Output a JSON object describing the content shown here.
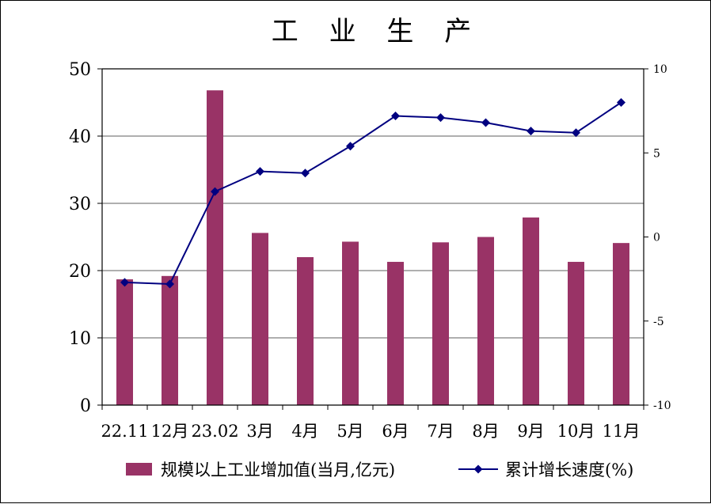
{
  "chart_data": {
    "type": "bar+line",
    "title": "工 业 生 产",
    "categories": [
      "22.11",
      "12月",
      "23.02",
      "3月",
      "4月",
      "5月",
      "6月",
      "7月",
      "8月",
      "9月",
      "10月",
      "11月"
    ],
    "series": [
      {
        "name": "规模以上工业增加值(当月,亿元)",
        "type": "bar",
        "axis": "left",
        "color": "#993366",
        "values": [
          18.7,
          19.2,
          46.8,
          25.6,
          22.0,
          24.3,
          21.3,
          24.2,
          25.0,
          27.9,
          21.3,
          24.1
        ]
      },
      {
        "name": "累计增长速度(%)",
        "type": "line",
        "axis": "right",
        "color": "#000080",
        "values": [
          -2.7,
          -2.8,
          2.7,
          3.9,
          3.8,
          5.4,
          7.2,
          7.1,
          6.8,
          6.3,
          6.2,
          8.0
        ]
      }
    ],
    "y_left": {
      "range": [
        0,
        50
      ],
      "ticks": [
        "0",
        "10",
        "20",
        "30",
        "40",
        "50"
      ]
    },
    "y_right": {
      "range": [
        -10,
        10
      ],
      "ticks": [
        "-10",
        "-5",
        "0",
        "5",
        "10"
      ]
    },
    "grid": true,
    "legend": "bottom"
  }
}
